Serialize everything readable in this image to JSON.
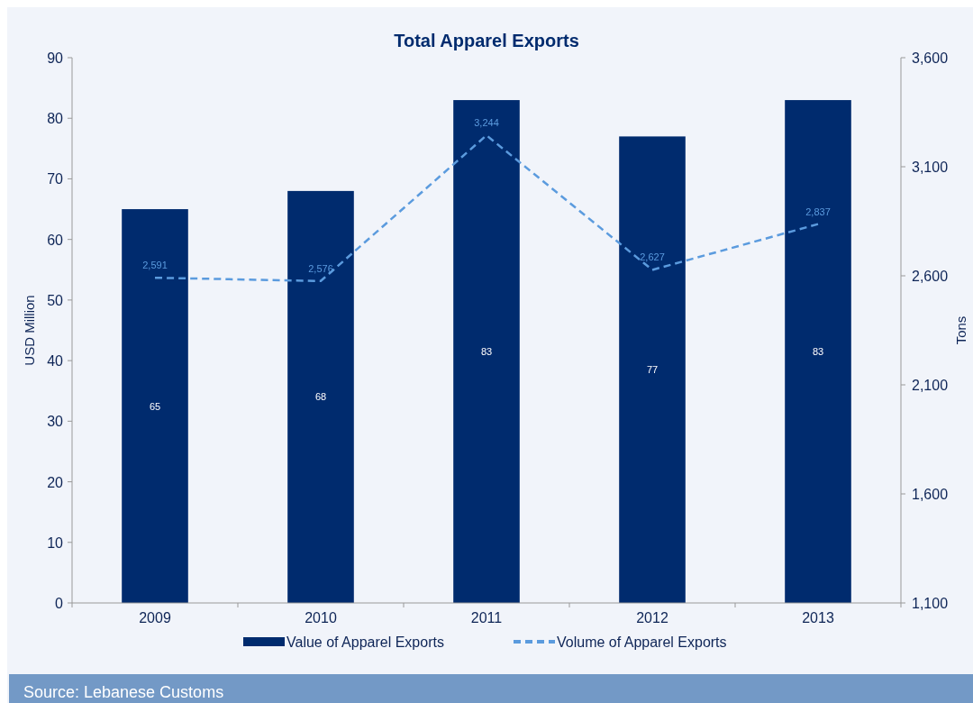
{
  "chart_data": {
    "type": "bar",
    "title": "Total Apparel Exports",
    "ylabel": "USD  Million",
    "y2label": "Tons",
    "categories": [
      "2009",
      "2010",
      "2011",
      "2012",
      "2013"
    ],
    "series": [
      {
        "name": "Value of Apparel Exports",
        "value_labels": [
          "65",
          "68",
          "83",
          "77",
          "83"
        ],
        "color": "#002b6e",
        "values": [
          65,
          68,
          83,
          77,
          83
        ]
      },
      {
        "name": "Volume of Apparel Exports",
        "type": "line",
        "axis": "y2",
        "color": "#5b9bde",
        "line_style": "dashed",
        "values": [
          2591,
          2576,
          3244,
          2627,
          2837
        ],
        "value_labels": [
          "2,591",
          "2,576",
          "3,244",
          "2,627",
          "2,837"
        ]
      }
    ],
    "ylim": [
      0,
      90
    ],
    "yticks": [
      0,
      10,
      20,
      30,
      40,
      50,
      60,
      70,
      80,
      90
    ],
    "y2lim": [
      1100,
      3600
    ],
    "y2ticks": [
      {
        "value": 1100,
        "label": "1,100"
      },
      {
        "value": 1600,
        "label": "1,600"
      },
      {
        "value": 2100,
        "label": "2,100"
      },
      {
        "value": 2600,
        "label": "2,600"
      },
      {
        "value": 3100,
        "label": "3,100"
      },
      {
        "value": 3600,
        "label": "3,600"
      }
    ],
    "legend": "bottom",
    "grid": false,
    "annotations": [
      "Source: Lebanese Customs"
    ]
  }
}
